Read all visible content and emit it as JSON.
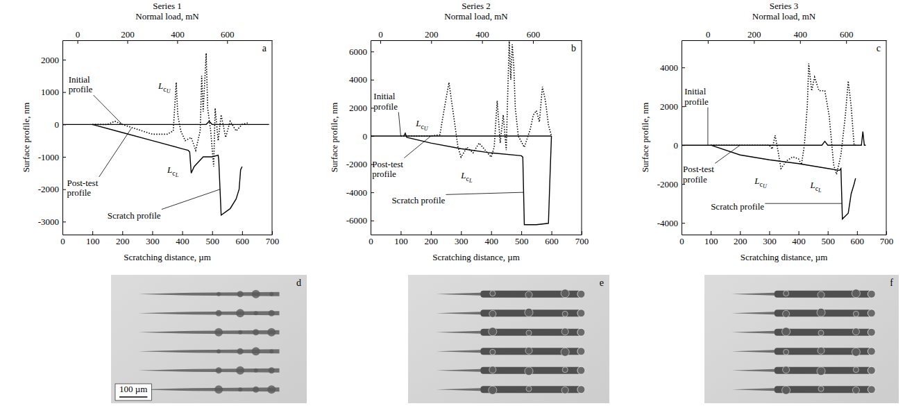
{
  "chart_data": [
    {
      "type": "line",
      "title": "Series 1",
      "label": "a",
      "x_label": "Scratching distance, µm",
      "y_label": "Surface profile, nm",
      "x2_label": "Normal load, mN",
      "xlim": [
        0,
        700
      ],
      "xticks": [
        0,
        100,
        200,
        300,
        400,
        500,
        600,
        700
      ],
      "x2lim": [
        -60,
        780
      ],
      "x2ticks": [
        0,
        200,
        400,
        600
      ],
      "ylim": [
        -3400,
        2600
      ],
      "yticks": [
        -3000,
        -2000,
        -1000,
        0,
        1000,
        2000
      ],
      "series": [
        {
          "color": "#000000",
          "line_style": "solid",
          "x": [
            0,
            100,
            200,
            300,
            400,
            480,
            490,
            500,
            600,
            690
          ],
          "values": [
            0,
            0,
            0,
            0,
            0,
            0,
            100,
            0,
            0,
            0
          ]
        },
        {
          "color": "#000000",
          "line_style": "dotted",
          "x": [
            100,
            150,
            175,
            200,
            250,
            300,
            350,
            370,
            380,
            385,
            395,
            410,
            430,
            445,
            460,
            465,
            470,
            480,
            485,
            495,
            505,
            510,
            520,
            530,
            545,
            560,
            580,
            600,
            620
          ],
          "values": [
            0,
            0,
            100,
            0,
            -150,
            -300,
            -300,
            -200,
            1300,
            300,
            -200,
            -500,
            -400,
            -800,
            -200,
            1500,
            400,
            2200,
            500,
            -200,
            -1300,
            500,
            -500,
            300,
            -400,
            100,
            -200,
            0,
            50
          ]
        },
        {
          "color": "#000000",
          "line_style": "solid",
          "x": [
            100,
            200,
            300,
            400,
            420,
            425,
            430,
            440,
            470,
            500,
            520,
            522,
            530,
            560,
            580,
            590,
            595,
            600
          ],
          "values": [
            0,
            -250,
            -500,
            -750,
            -800,
            -850,
            -1500,
            -1300,
            -1000,
            -1000,
            -950,
            -1100,
            -2800,
            -2600,
            -2300,
            -2000,
            -1400,
            -1300
          ]
        }
      ],
      "annotations": [
        {
          "text": [
            "Initial",
            "profile"
          ],
          "x": 20,
          "y": 1300,
          "target_x": 200,
          "target_y": 0
        },
        {
          "text": [
            "Post-test",
            "profile"
          ],
          "x": 15,
          "y": -1900,
          "target_x": 230,
          "target_y": -120
        },
        {
          "text": [
            "Scratch profile"
          ],
          "x": 150,
          "y": -2900,
          "target_x": 527,
          "target_y": -2000
        },
        {
          "text": "L",
          "sub": "c",
          "sub2": "U",
          "x": 320,
          "y": 1100
        },
        {
          "text": "L",
          "sub": "c",
          "sub2": "L",
          "x": 350,
          "y": -1500
        }
      ]
    },
    {
      "type": "line",
      "title": "Series 2",
      "label": "b",
      "x_label": "Scratching distance, µm",
      "y_label": "Surface profile, nm",
      "x2_label": "Normal load, mN",
      "xlim": [
        0,
        700
      ],
      "xticks": [
        0,
        100,
        200,
        300,
        400,
        500,
        600,
        700
      ],
      "x2lim": [
        -38,
        791
      ],
      "x2ticks": [
        0,
        200,
        400,
        600
      ],
      "ylim": [
        -7000,
        6800
      ],
      "yticks": [
        -6000,
        -4000,
        -2000,
        0,
        2000,
        4000,
        6000
      ],
      "series": [
        {
          "color": "#000000",
          "line_style": "solid",
          "x": [
            0,
            100,
            200,
            300,
            400,
            500,
            600
          ],
          "values": [
            0,
            0,
            0,
            0,
            0,
            0,
            0
          ]
        },
        {
          "color": "#000000",
          "line_style": "dotted",
          "x": [
            100,
            150,
            200,
            230,
            245,
            260,
            275,
            290,
            300,
            320,
            340,
            360,
            380,
            400,
            410,
            420,
            430,
            440,
            450,
            455,
            460,
            465,
            470,
            475,
            480,
            490,
            510,
            530,
            540,
            550,
            560,
            570,
            580,
            590,
            600
          ],
          "values": [
            0,
            0,
            0,
            100,
            2000,
            3800,
            1500,
            -800,
            -1500,
            -800,
            -1200,
            -500,
            -1000,
            -1500,
            -800,
            2500,
            -500,
            1500,
            -1000,
            3000,
            6800,
            4000,
            6500,
            5000,
            2000,
            0,
            -800,
            500,
            1500,
            1800,
            1000,
            3500,
            2500,
            800,
            0
          ]
        },
        {
          "color": "#000000",
          "line_style": "solid",
          "x": [
            110,
            115,
            120,
            200,
            300,
            400,
            500,
            505,
            510,
            550,
            590,
            595,
            600
          ],
          "values": [
            0,
            200,
            -100,
            -500,
            -900,
            -1200,
            -1400,
            -1500,
            -6300,
            -6300,
            -6200,
            -3000,
            0
          ]
        }
      ],
      "annotations": [
        {
          "text": [
            "Initial",
            "profile"
          ],
          "x": 10,
          "y": 2600,
          "target_x": 100,
          "target_y": 0
        },
        {
          "text": "L",
          "sub": "c",
          "sub2": "U",
          "x": 150,
          "y": 700
        },
        {
          "text": [
            "Post-test",
            "profile"
          ],
          "x": 5,
          "y": -2200,
          "target_x": 200,
          "target_y": 0
        },
        {
          "text": "L",
          "sub": "c",
          "sub2": "L",
          "x": 300,
          "y": -3000
        },
        {
          "text": [
            "Scratch profile"
          ],
          "x": 70,
          "y": -4800,
          "target_x": 507,
          "target_y": -4000
        }
      ]
    },
    {
      "type": "line",
      "title": "Series 3",
      "label": "c",
      "x_label": "Scratching distance, µm",
      "y_label": "Surface profile, nm",
      "x2_label": "Normal load, mN",
      "xlim": [
        0,
        700
      ],
      "xticks": [
        0,
        100,
        200,
        300,
        400,
        500,
        600,
        700
      ],
      "x2lim": [
        -114,
        774
      ],
      "x2ticks": [
        0,
        200,
        400,
        600
      ],
      "ylim": [
        -4600,
        5400
      ],
      "yticks": [
        -4000,
        -2000,
        0,
        2000,
        4000
      ],
      "series": [
        {
          "color": "#000000",
          "line_style": "solid",
          "x": [
            0,
            100,
            200,
            300,
            400,
            480,
            490,
            500,
            600,
            615,
            620,
            625,
            630
          ],
          "values": [
            0,
            0,
            0,
            0,
            0,
            0,
            200,
            0,
            0,
            0,
            700,
            0,
            0
          ]
        },
        {
          "color": "#000000",
          "line_style": "dotted",
          "x": [
            100,
            200,
            300,
            310,
            320,
            330,
            340,
            360,
            380,
            400,
            410,
            420,
            430,
            435,
            445,
            455,
            470,
            490,
            505,
            520,
            530,
            545,
            560,
            570,
            580,
            590,
            600
          ],
          "values": [
            0,
            0,
            0,
            -200,
            500,
            -300,
            -1200,
            -800,
            -600,
            -700,
            -1000,
            0,
            2000,
            4200,
            2800,
            3500,
            2800,
            2800,
            1500,
            -1000,
            -1500,
            -500,
            1500,
            3300,
            2000,
            0,
            0
          ]
        },
        {
          "color": "#000000",
          "line_style": "solid",
          "x": [
            100,
            200,
            300,
            400,
            500,
            540,
            545,
            550,
            570,
            580,
            590,
            595
          ],
          "values": [
            0,
            -500,
            -750,
            -950,
            -1200,
            -1300,
            -1200,
            -3800,
            -3500,
            -2500,
            -2000,
            -1700
          ]
        }
      ],
      "annotations": [
        {
          "text": [
            "Initial",
            "profile"
          ],
          "x": 10,
          "y": 2600,
          "target_x": 90,
          "target_y": 0
        },
        {
          "text": [
            "Post-test",
            "profile"
          ],
          "x": 5,
          "y": -1400,
          "target_x": 200,
          "target_y": 0
        },
        {
          "text": "L",
          "sub": "c",
          "sub2": "U",
          "x": 250,
          "y": -2000
        },
        {
          "text": "L",
          "sub": "c",
          "sub2": "L",
          "x": 440,
          "y": -2200
        },
        {
          "text": [
            "Scratch profile"
          ],
          "x": 100,
          "y": -3300,
          "target_x": 548,
          "target_y": -3000
        }
      ]
    }
  ],
  "micrographs": {
    "panels": [
      {
        "label": "d",
        "scratches": 6,
        "scale_bar": "100 µm"
      },
      {
        "label": "e",
        "scratches": 6
      },
      {
        "label": "f",
        "scratches": 6
      }
    ]
  }
}
